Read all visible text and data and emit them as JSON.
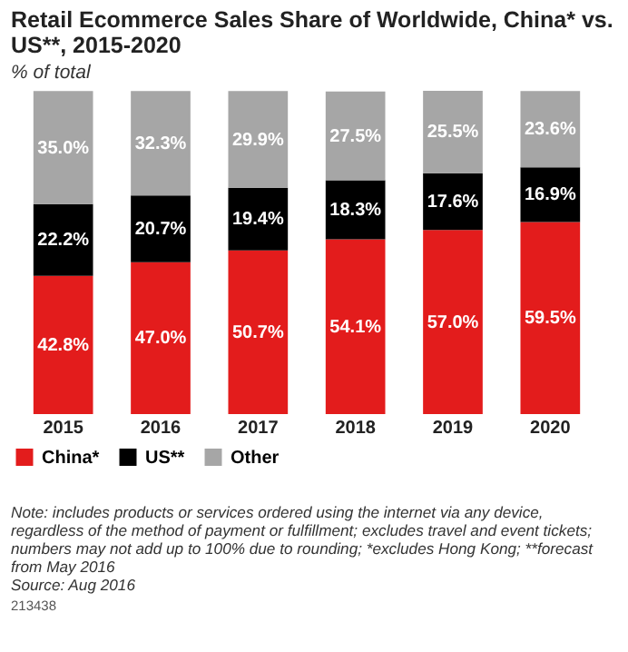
{
  "chart_data": {
    "type": "bar",
    "title": "Retail Ecommerce Sales Share of Worldwide, China* vs. US**, 2015-2020",
    "subtitle": "% of total",
    "categories": [
      "2015",
      "2016",
      "2017",
      "2018",
      "2019",
      "2020"
    ],
    "stacked": true,
    "tick_labels": "x",
    "legend": "bottom left",
    "series": [
      {
        "name": "China*",
        "color": "#e31c1c",
        "values": [
          42.8,
          47.0,
          50.7,
          54.1,
          57.0,
          59.5
        ],
        "value_labels": [
          "42.8%",
          "47.0%",
          "50.7%",
          "54.1%",
          "57.0%",
          "59.5%"
        ]
      },
      {
        "name": "US**",
        "color": "#000000",
        "values": [
          22.2,
          20.7,
          19.4,
          18.3,
          17.6,
          16.9
        ],
        "value_labels": [
          "22.2%",
          "20.7%",
          "19.4%",
          "18.3%",
          "17.6%",
          "16.9%"
        ]
      },
      {
        "name": "Other",
        "color": "#a6a6a6",
        "values": [
          35.0,
          32.3,
          29.9,
          27.5,
          25.5,
          23.6
        ],
        "value_labels": [
          "35.0%",
          "32.3%",
          "29.9%",
          "27.5%",
          "25.5%",
          "23.6%"
        ]
      }
    ],
    "annotations": [
      "Note: includes products or services ordered using the internet via any device, regardless of the method of payment or fulfillment; excludes travel and event tickets; numbers may not add up to 100% due to rounding; *excludes Hong Kong; **forecast from May 2016",
      "Source: Aug 2016",
      "213438"
    ]
  }
}
